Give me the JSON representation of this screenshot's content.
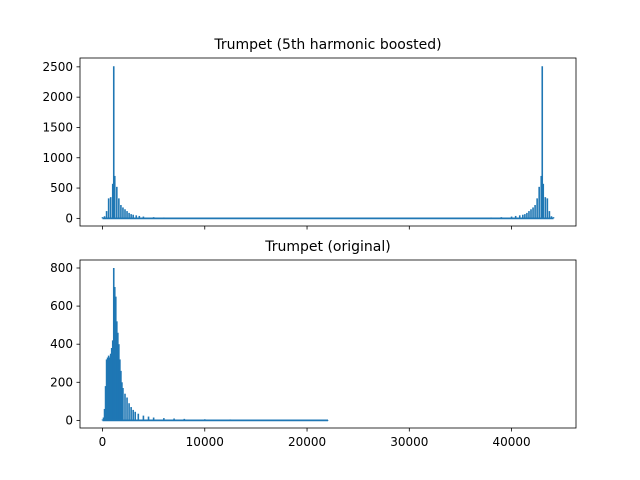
{
  "colors": {
    "series": "#1f77b4",
    "axis": "#000000",
    "background": "#ffffff"
  },
  "chart_data": [
    {
      "type": "bar",
      "title": "Trumpet (5th harmonic boosted)",
      "xlabel": "",
      "ylabel": "",
      "xlim": [
        -2200,
        46300
      ],
      "ylim": [
        -126,
        2646
      ],
      "xticks": [
        0,
        10000,
        20000,
        30000,
        40000
      ],
      "xtick_labels_visible": false,
      "yticks": [
        0,
        500,
        1000,
        1500,
        2000,
        2500
      ],
      "ytick_labels": [
        "0",
        "500",
        "1000",
        "1500",
        "2000",
        "2500"
      ],
      "grid": false,
      "series": [
        {
          "points": [
            [
              0,
              20
            ],
            [
              200,
              35
            ],
            [
              400,
              120
            ],
            [
              600,
              330
            ],
            [
              800,
              350
            ],
            [
              1000,
              570
            ],
            [
              1100,
              2510
            ],
            [
              1200,
              700
            ],
            [
              1400,
              520
            ],
            [
              1600,
              330
            ],
            [
              1800,
              220
            ],
            [
              2000,
              180
            ],
            [
              2200,
              150
            ],
            [
              2400,
              120
            ],
            [
              2600,
              90
            ],
            [
              2800,
              70
            ],
            [
              3000,
              60
            ],
            [
              3300,
              50
            ],
            [
              3600,
              40
            ],
            [
              4000,
              30
            ],
            [
              5000,
              20
            ],
            [
              6000,
              15
            ],
            [
              8000,
              10
            ],
            [
              10000,
              8
            ],
            [
              15000,
              6
            ],
            [
              20000,
              5
            ],
            [
              22050,
              5
            ],
            [
              25000,
              5
            ],
            [
              30000,
              6
            ],
            [
              34000,
              8
            ],
            [
              36000,
              10
            ],
            [
              38000,
              15
            ],
            [
              39000,
              20
            ],
            [
              40000,
              30
            ],
            [
              40400,
              40
            ],
            [
              40800,
              50
            ],
            [
              41100,
              60
            ],
            [
              41300,
              70
            ],
            [
              41500,
              90
            ],
            [
              41700,
              120
            ],
            [
              41900,
              150
            ],
            [
              42100,
              180
            ],
            [
              42300,
              220
            ],
            [
              42500,
              330
            ],
            [
              42700,
              520
            ],
            [
              42900,
              700
            ],
            [
              43000,
              2510
            ],
            [
              43100,
              570
            ],
            [
              43300,
              350
            ],
            [
              43500,
              330
            ],
            [
              43700,
              120
            ],
            [
              43900,
              35
            ],
            [
              44100,
              20
            ]
          ]
        }
      ]
    },
    {
      "type": "bar",
      "title": "Trumpet (original)",
      "xlabel": "",
      "ylabel": "",
      "xlim": [
        -2200,
        46300
      ],
      "ylim": [
        -40,
        842
      ],
      "xticks": [
        0,
        10000,
        20000,
        30000,
        40000
      ],
      "xtick_labels": [
        "0",
        "10000",
        "20000",
        "30000",
        "40000"
      ],
      "yticks": [
        0,
        200,
        400,
        600,
        800
      ],
      "ytick_labels": [
        "0",
        "200",
        "400",
        "600",
        "800"
      ],
      "grid": false,
      "series": [
        {
          "points": [
            [
              0,
              5
            ],
            [
              100,
              15
            ],
            [
              200,
              60
            ],
            [
              300,
              180
            ],
            [
              400,
              320
            ],
            [
              500,
              330
            ],
            [
              600,
              340
            ],
            [
              700,
              330
            ],
            [
              800,
              350
            ],
            [
              900,
              380
            ],
            [
              1000,
              420
            ],
            [
              1100,
              800
            ],
            [
              1200,
              700
            ],
            [
              1300,
              650
            ],
            [
              1400,
              520
            ],
            [
              1500,
              460
            ],
            [
              1600,
              400
            ],
            [
              1700,
              320
            ],
            [
              1800,
              260
            ],
            [
              1900,
              200
            ],
            [
              2000,
              170
            ],
            [
              2200,
              140
            ],
            [
              2400,
              120
            ],
            [
              2600,
              90
            ],
            [
              2800,
              70
            ],
            [
              3000,
              55
            ],
            [
              3200,
              45
            ],
            [
              3500,
              35
            ],
            [
              4000,
              25
            ],
            [
              4500,
              20
            ],
            [
              5000,
              15
            ],
            [
              6000,
              12
            ],
            [
              7000,
              10
            ],
            [
              8000,
              8
            ],
            [
              10000,
              6
            ],
            [
              12500,
              5
            ],
            [
              15000,
              3
            ],
            [
              20000,
              2
            ],
            [
              22050,
              2
            ]
          ]
        }
      ]
    }
  ]
}
